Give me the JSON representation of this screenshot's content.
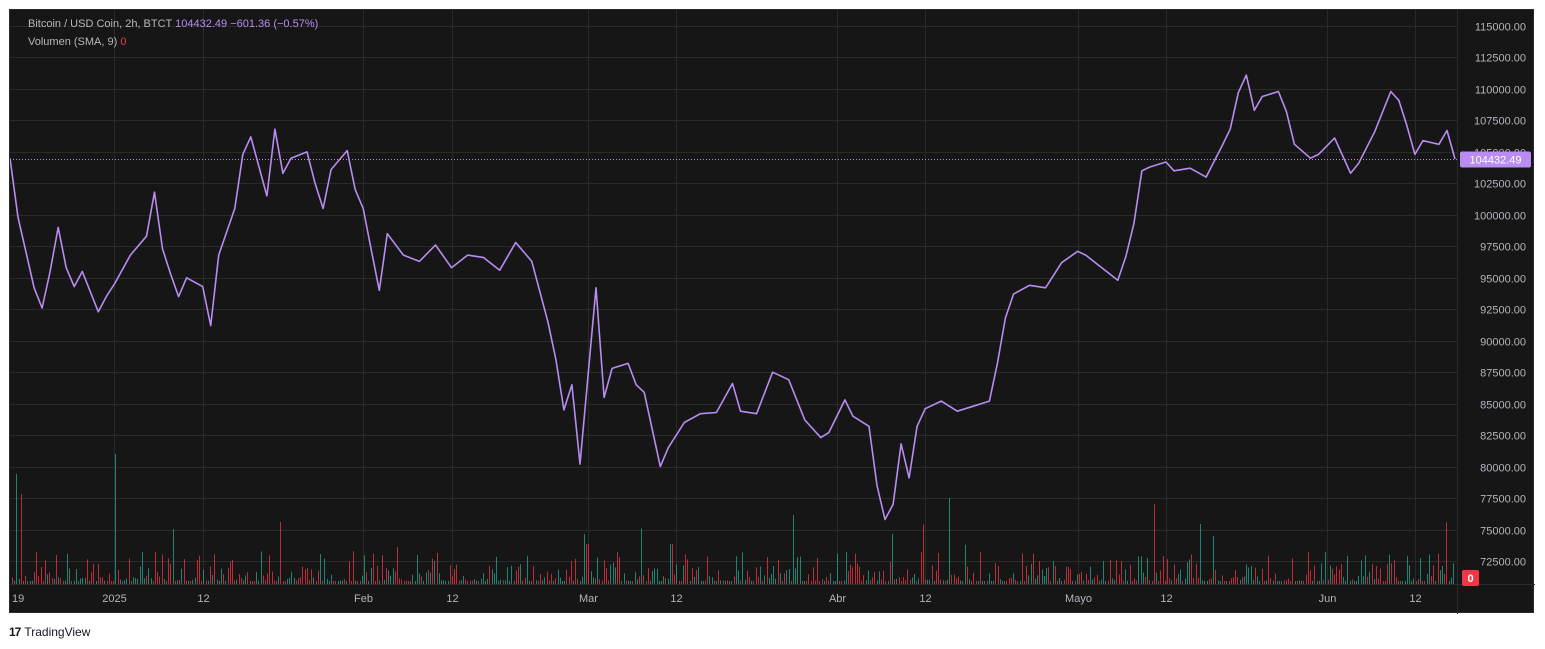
{
  "legend": {
    "symbol": "Bitcoin / USD Coin, 2h, BTCT",
    "last": "104432.49",
    "change": "−601.36 (−0.57%)",
    "volume_label": "Volumen (SMA, 9)",
    "volume_value": "0"
  },
  "price_tag": "104432.49",
  "volume_tag": "0",
  "footer": {
    "logo": "17",
    "brand": "TradingView"
  },
  "colors": {
    "line": "#b88cf0",
    "up": "#22ab94",
    "down": "#f23645",
    "bg": "#161616",
    "grid": "#2a2a2a"
  },
  "chart_data": {
    "type": "line",
    "title": "Bitcoin / USD Coin, 2h, BTCT",
    "ylim": [
      72500,
      115000
    ],
    "y_ticks": [
      "115000.00",
      "112500.00",
      "110000.00",
      "107500.00",
      "105000.00",
      "102500.00",
      "100000.00",
      "97500.00",
      "95000.00",
      "92500.00",
      "90000.00",
      "87500.00",
      "85000.00",
      "82500.00",
      "80000.00",
      "77500.00",
      "75000.00",
      "72500.00"
    ],
    "x_ticks": [
      "19",
      "2025",
      "12",
      "Feb",
      "12",
      "Mar",
      "12",
      "Abr",
      "12",
      "Mayo",
      "12",
      "Jun",
      "12"
    ],
    "x_range": [
      "2024-12-19",
      "2025-06-17"
    ],
    "series": [
      {
        "x": [
          "2024-12-19",
          "2024-12-20",
          "2024-12-21",
          "2024-12-22",
          "2024-12-23",
          "2024-12-24",
          "2024-12-25",
          "2024-12-26",
          "2024-12-27",
          "2024-12-28",
          "2024-12-30",
          "2024-12-31",
          "2025-01-01",
          "2025-01-03",
          "2025-01-05",
          "2025-01-06",
          "2025-01-07",
          "2025-01-08",
          "2025-01-09",
          "2025-01-10",
          "2025-01-12",
          "2025-01-13",
          "2025-01-14",
          "2025-01-16",
          "2025-01-17",
          "2025-01-18",
          "2025-01-20",
          "2025-01-21",
          "2025-01-22",
          "2025-01-23",
          "2025-01-25",
          "2025-01-26",
          "2025-01-27",
          "2025-01-28",
          "2025-01-30",
          "2025-01-31",
          "2025-02-01",
          "2025-02-02",
          "2025-02-03",
          "2025-02-04",
          "2025-02-06",
          "2025-02-08",
          "2025-02-10",
          "2025-02-12",
          "2025-02-14",
          "2025-02-16",
          "2025-02-18",
          "2025-02-20",
          "2025-02-22",
          "2025-02-24",
          "2025-02-25",
          "2025-02-26",
          "2025-02-27",
          "2025-02-28",
          "2025-03-02",
          "2025-03-03",
          "2025-03-04",
          "2025-03-06",
          "2025-03-07",
          "2025-03-08",
          "2025-03-10",
          "2025-03-11",
          "2025-03-13",
          "2025-03-15",
          "2025-03-17",
          "2025-03-19",
          "2025-03-20",
          "2025-03-22",
          "2025-03-24",
          "2025-03-26",
          "2025-03-28",
          "2025-03-30",
          "2025-03-31",
          "2025-04-02",
          "2025-04-03",
          "2025-04-05",
          "2025-04-06",
          "2025-04-07",
          "2025-04-08",
          "2025-04-09",
          "2025-04-10",
          "2025-04-11",
          "2025-04-12",
          "2025-04-14",
          "2025-04-16",
          "2025-04-18",
          "2025-04-20",
          "2025-04-21",
          "2025-04-22",
          "2025-04-23",
          "2025-04-25",
          "2025-04-27",
          "2025-04-29",
          "2025-05-01",
          "2025-05-02",
          "2025-05-04",
          "2025-05-06",
          "2025-05-07",
          "2025-05-08",
          "2025-05-09",
          "2025-05-10",
          "2025-05-12",
          "2025-05-13",
          "2025-05-15",
          "2025-05-17",
          "2025-05-19",
          "2025-05-20",
          "2025-05-21",
          "2025-05-22",
          "2025-05-23",
          "2025-05-24",
          "2025-05-26",
          "2025-05-27",
          "2025-05-28",
          "2025-05-30",
          "2025-05-31",
          "2025-06-02",
          "2025-06-04",
          "2025-06-05",
          "2025-06-07",
          "2025-06-09",
          "2025-06-10",
          "2025-06-11",
          "2025-06-12",
          "2025-06-13",
          "2025-06-15",
          "2025-06-16",
          "2025-06-17"
        ],
        "values": [
          104500,
          99800,
          97000,
          94200,
          92600,
          95500,
          99000,
          95800,
          94300,
          95500,
          92300,
          93500,
          94500,
          96800,
          98300,
          101800,
          97300,
          95300,
          93500,
          95000,
          94300,
          91200,
          96800,
          100500,
          104800,
          106200,
          101500,
          106800,
          103300,
          104500,
          105000,
          102500,
          100500,
          103600,
          105100,
          102000,
          100500,
          97200,
          94000,
          98500,
          96800,
          96300,
          97600,
          95800,
          96800,
          96600,
          95600,
          97800,
          96300,
          91500,
          88500,
          84500,
          86500,
          80200,
          94200,
          85500,
          87800,
          88200,
          86500,
          85900,
          80000,
          81500,
          83500,
          84200,
          84300,
          86600,
          84400,
          84200,
          87500,
          86900,
          83700,
          82300,
          82700,
          85300,
          84000,
          83200,
          78500,
          75800,
          77000,
          81800,
          79100,
          83200,
          84600,
          85200,
          84400,
          84800,
          85200,
          88200,
          91800,
          93700,
          94400,
          94200,
          96200,
          97100,
          96800,
          95800,
          94800,
          96700,
          99300,
          103500,
          103800,
          104200,
          103500,
          103700,
          103000,
          105500,
          106800,
          109700,
          111100,
          108300,
          109400,
          109800,
          108200,
          105600,
          104500,
          104800,
          106100,
          103300,
          104100,
          106600,
          109800,
          109100,
          107100,
          104800,
          105900,
          105600,
          106700,
          104432
        ]
      }
    ],
    "volume_series_color_up": "#22ab94",
    "volume_series_color_down": "#f23645"
  }
}
